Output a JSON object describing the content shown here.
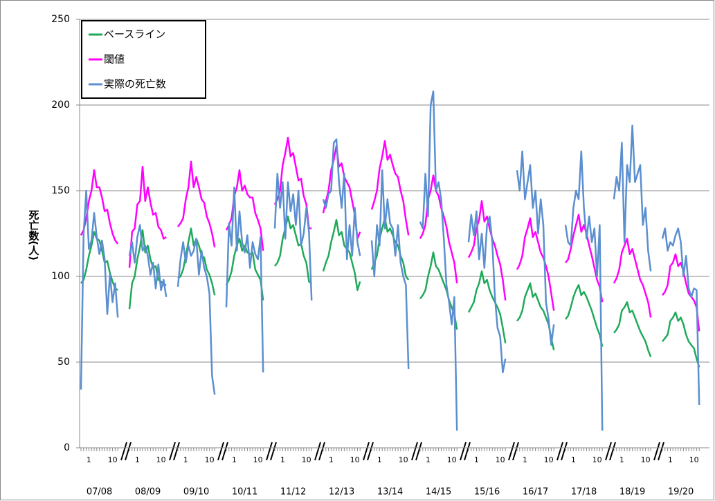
{
  "chart_data": {
    "type": "line",
    "y_label": "死亡数(人)",
    "categories": [
      "07/08",
      "08/09",
      "09/10",
      "10/11",
      "11/12",
      "12/13",
      "13/14",
      "14/15",
      "15/16",
      "16/17",
      "17/18",
      "18/19",
      "19/20"
    ],
    "x": [
      50,
      51,
      52,
      1,
      2,
      3,
      4,
      5,
      6,
      7,
      8,
      9,
      10,
      11,
      12
    ],
    "xticks": [
      1,
      10
    ],
    "ylim": [
      0,
      250
    ],
    "yticks": [
      0,
      50,
      100,
      150,
      200,
      250
    ],
    "grid": true,
    "legend": "upper left",
    "series": [
      {
        "name": "ベースライン",
        "color": "#1faa59",
        "values": [
          [
            96,
            98,
            104,
            112,
            118,
            126,
            122,
            121,
            115,
            108,
            109,
            102,
            97,
            93,
            92
          ],
          [
            81,
            96,
            100,
            110,
            117,
            127,
            114,
            118,
            110,
            105,
            106,
            98,
            97,
            95,
            95
          ],
          [
            99,
            100,
            104,
            112,
            120,
            128,
            118,
            122,
            118,
            112,
            111,
            104,
            101,
            96,
            89
          ],
          [
            95,
            98,
            103,
            112,
            118,
            122,
            115,
            118,
            114,
            113,
            114,
            104,
            101,
            98,
            86
          ],
          [
            106,
            108,
            112,
            122,
            128,
            135,
            128,
            130,
            124,
            118,
            119,
            112,
            108,
            97,
            96
          ],
          [
            103,
            108,
            112,
            120,
            126,
            133,
            124,
            126,
            118,
            116,
            114,
            108,
            102,
            92,
            97
          ],
          [
            104,
            108,
            112,
            122,
            128,
            134,
            126,
            128,
            124,
            120,
            118,
            112,
            108,
            100,
            98
          ],
          [
            87,
            89,
            92,
            100,
            106,
            114,
            106,
            104,
            100,
            96,
            92,
            86,
            82,
            78,
            69
          ],
          [
            79,
            82,
            85,
            92,
            96,
            103,
            96,
            98,
            92,
            88,
            85,
            82,
            78,
            70,
            61
          ],
          [
            74,
            76,
            80,
            88,
            92,
            96,
            88,
            90,
            86,
            82,
            80,
            76,
            72,
            64,
            57
          ],
          [
            75,
            77,
            82,
            88,
            92,
            95,
            89,
            91,
            88,
            84,
            80,
            75,
            70,
            66,
            59
          ],
          [
            67,
            69,
            72,
            80,
            82,
            85,
            79,
            80,
            76,
            72,
            68,
            65,
            62,
            57,
            53
          ],
          [
            62,
            64,
            66,
            74,
            76,
            79,
            74,
            76,
            72,
            66,
            62,
            60,
            58,
            52,
            47
          ]
        ]
      },
      {
        "name": "閾値",
        "color": "#ff00ff",
        "values": [
          [
            124,
            127,
            134,
            144,
            150,
            162,
            152,
            152,
            146,
            138,
            139,
            131,
            125,
            121,
            119
          ],
          [
            105,
            126,
            128,
            142,
            144,
            164,
            144,
            152,
            143,
            136,
            137,
            129,
            127,
            122,
            123
          ],
          [
            129,
            131,
            134,
            145,
            152,
            167,
            152,
            158,
            152,
            145,
            143,
            135,
            131,
            125,
            117
          ],
          [
            127,
            130,
            134,
            147,
            152,
            162,
            150,
            153,
            148,
            146,
            146,
            137,
            133,
            128,
            115
          ],
          [
            142,
            145,
            150,
            165,
            172,
            181,
            170,
            172,
            164,
            156,
            157,
            147,
            142,
            128,
            128
          ],
          [
            137,
            144,
            150,
            162,
            168,
            176,
            164,
            166,
            158,
            155,
            152,
            144,
            136,
            122,
            126
          ],
          [
            139,
            144,
            150,
            163,
            170,
            179,
            168,
            171,
            165,
            160,
            158,
            150,
            144,
            133,
            124
          ],
          [
            122,
            125,
            130,
            145,
            150,
            159,
            150,
            147,
            140,
            135,
            129,
            120,
            114,
            108,
            96
          ],
          [
            111,
            114,
            118,
            128,
            133,
            144,
            132,
            135,
            128,
            122,
            118,
            112,
            107,
            98,
            86
          ],
          [
            104,
            107,
            112,
            123,
            128,
            134,
            123,
            126,
            120,
            114,
            111,
            106,
            100,
            90,
            80
          ],
          [
            108,
            110,
            116,
            124,
            130,
            136,
            126,
            130,
            125,
            118,
            112,
            105,
            98,
            94,
            85
          ],
          [
            96,
            99,
            104,
            114,
            118,
            122,
            113,
            116,
            110,
            104,
            98,
            95,
            90,
            85,
            76
          ],
          [
            89,
            91,
            95,
            106,
            108,
            113,
            106,
            108,
            103,
            96,
            90,
            88,
            86,
            82,
            68
          ]
        ]
      },
      {
        "name": "実際の死亡数",
        "color": "#5b8fd0",
        "values": [
          [
            34,
            125,
            150,
            116,
            121,
            137,
            123,
            113,
            121,
            110,
            78,
            101,
            85,
            96,
            76
          ],
          [
            112,
            120,
            108,
            123,
            130,
            115,
            118,
            112,
            101,
            108,
            93,
            107,
            92,
            98,
            88
          ],
          [
            94,
            110,
            120,
            108,
            118,
            112,
            115,
            122,
            101,
            115,
            105,
            100,
            90,
            42,
            31
          ],
          [
            82,
            131,
            118,
            152,
            115,
            138,
            120,
            114,
            124,
            105,
            120,
            113,
            110,
            123,
            44
          ],
          [
            128,
            160,
            140,
            155,
            122,
            155,
            138,
            148,
            130,
            150,
            118,
            125,
            140,
            126,
            86
          ],
          [
            145,
            140,
            148,
            150,
            178,
            180,
            155,
            140,
            160,
            110,
            130,
            112,
            140,
            120,
            112
          ],
          [
            121,
            100,
            130,
            118,
            162,
            128,
            145,
            131,
            128,
            112,
            130,
            108,
            100,
            95,
            46
          ],
          [
            132,
            128,
            160,
            135,
            200,
            208,
            150,
            155,
            145,
            122,
            95,
            85,
            72,
            88,
            10
          ],
          [
            120,
            136,
            124,
            138,
            110,
            125,
            105,
            130,
            135,
            120,
            88,
            70,
            65,
            44,
            52
          ],
          [
            162,
            150,
            173,
            145,
            155,
            165,
            140,
            150,
            125,
            145,
            130,
            85,
            75,
            60,
            72
          ],
          [
            130,
            120,
            118,
            140,
            150,
            145,
            173,
            140,
            122,
            135,
            120,
            128,
            100,
            130,
            10
          ],
          [
            145,
            158,
            150,
            178,
            120,
            165,
            155,
            188,
            155,
            160,
            165,
            130,
            140,
            115,
            103
          ],
          [
            122,
            128,
            115,
            120,
            118,
            124,
            128,
            120,
            100,
            112,
            93,
            88,
            93,
            92,
            25
          ]
        ]
      }
    ]
  }
}
